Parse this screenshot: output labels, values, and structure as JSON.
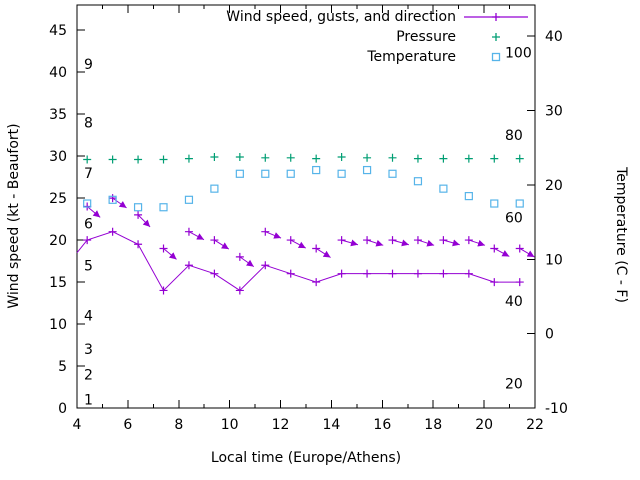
{
  "legend": {
    "wind_label": "Wind speed, gusts, and direction",
    "pressure_label": "Pressure",
    "temperature_label": "Temperature"
  },
  "axis_labels": {
    "x": "Local time (Europe/Athens)",
    "y_left": "Wind speed (kt - Beaufort)",
    "y_right": "Temperature (C - F)"
  },
  "colors": {
    "wind": "#9400d3",
    "pressure": "#009e73",
    "temperature": "#56b4e9",
    "axis": "#000000",
    "background": "#ffffff"
  },
  "chart_data": {
    "type": "line",
    "title": "",
    "x_axis": {
      "label": "Local time (Europe/Athens)",
      "min": 4,
      "max": 22,
      "major_ticks": [
        4,
        6,
        8,
        10,
        12,
        14,
        16,
        18,
        20,
        22
      ],
      "minor_tick_step": 1
    },
    "y_left_axis": {
      "label": "Wind speed (kt - Beaufort)",
      "min": 0,
      "max": 48,
      "ticks": [
        0,
        5,
        10,
        15,
        20,
        25,
        30,
        35,
        40,
        45
      ],
      "beaufort_scale_labels": [
        {
          "text": "1",
          "kt": 1
        },
        {
          "text": "2",
          "kt": 4
        },
        {
          "text": "3",
          "kt": 7
        },
        {
          "text": "4",
          "kt": 11
        },
        {
          "text": "5",
          "kt": 17
        },
        {
          "text": "6",
          "kt": 22
        },
        {
          "text": "7",
          "kt": 28
        },
        {
          "text": "8",
          "kt": 34
        },
        {
          "text": "9",
          "kt": 41
        }
      ]
    },
    "y_right_axis": {
      "label": "Temperature (C - F)",
      "min": -10,
      "max": 44.2,
      "ticks": [
        -10,
        0,
        10,
        20,
        30,
        40
      ],
      "fahrenheit_scale_labels": [
        {
          "text": "20",
          "c": -6.7
        },
        {
          "text": "40",
          "c": 4.4
        },
        {
          "text": "60",
          "c": 15.6
        },
        {
          "text": "80",
          "c": 26.7
        },
        {
          "text": "100",
          "c": 37.8
        }
      ]
    },
    "hours": [
      4.4,
      5.4,
      6.4,
      7.4,
      8.4,
      9.4,
      10.4,
      11.4,
      12.4,
      13.4,
      14.4,
      15.4,
      16.4,
      17.4,
      18.4,
      19.4,
      20.4,
      21.4
    ],
    "series": {
      "wind_speed_kt": {
        "name": "Wind speed, gusts, and direction",
        "axis": "left",
        "line_start": {
          "hour": 4.0,
          "kt": 18.5
        },
        "values": [
          20,
          21,
          19.5,
          14,
          17,
          16,
          14,
          17,
          16,
          15,
          16,
          16,
          16,
          16,
          16,
          16,
          15,
          15
        ]
      },
      "wind_gusts_kt": {
        "axis": "left",
        "values": [
          24,
          25,
          23,
          19,
          21,
          20,
          18,
          21,
          20,
          19,
          20,
          20,
          20,
          20,
          20,
          20,
          19,
          19
        ],
        "arrow_angles_deg": [
          40,
          35,
          45,
          40,
          28,
          32,
          35,
          22,
          28,
          32,
          16,
          18,
          16,
          18,
          16,
          18,
          28,
          30
        ]
      },
      "pressure": {
        "name": "Pressure",
        "axis": "left",
        "values": [
          29.6,
          29.6,
          29.6,
          29.6,
          29.7,
          29.9,
          29.9,
          29.8,
          29.8,
          29.7,
          29.9,
          29.8,
          29.8,
          29.7,
          29.7,
          29.7,
          29.7,
          29.7
        ]
      },
      "temperature_c": {
        "name": "Temperature",
        "axis": "right",
        "values": [
          17.5,
          18,
          17,
          17,
          18,
          19.5,
          21.5,
          21.5,
          21.5,
          22,
          21.5,
          22,
          21.5,
          20.5,
          19.5,
          18.5,
          17.5,
          17.5
        ]
      }
    }
  }
}
